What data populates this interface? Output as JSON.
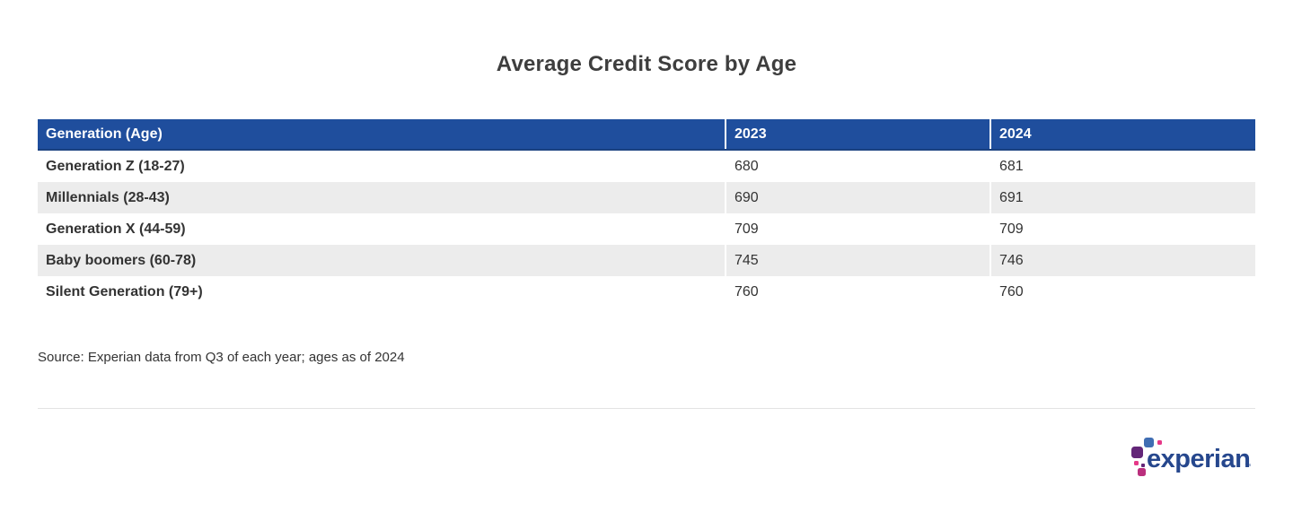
{
  "chart_data": {
    "type": "table",
    "title": "Average Credit Score by Age",
    "columns": [
      "Generation (Age)",
      "2023",
      "2024"
    ],
    "rows": [
      [
        "Generation Z (18-27)",
        680,
        681
      ],
      [
        "Millennials (28-43)",
        690,
        691
      ],
      [
        "Generation X (44-59)",
        709,
        709
      ],
      [
        "Baby boomers (60-78)",
        745,
        746
      ],
      [
        "Silent Generation (79+)",
        760,
        760
      ]
    ],
    "source": "Source: Experian data from Q3 of each year; ages as of 2024"
  },
  "logo": {
    "text": "experian",
    "trademark": "™"
  },
  "colors": {
    "header_bg": "#1f4e9d",
    "header_text": "#ffffff",
    "row_alt_bg": "#ececec",
    "body_text": "#333333",
    "title_text": "#3e3e3e",
    "divider": "#e3e3e3",
    "logo_blue": "#26478d",
    "logo_light_blue": "#406eb3",
    "logo_purple": "#632678",
    "logo_magenta": "#ba2f7d",
    "logo_pink": "#e63888"
  }
}
